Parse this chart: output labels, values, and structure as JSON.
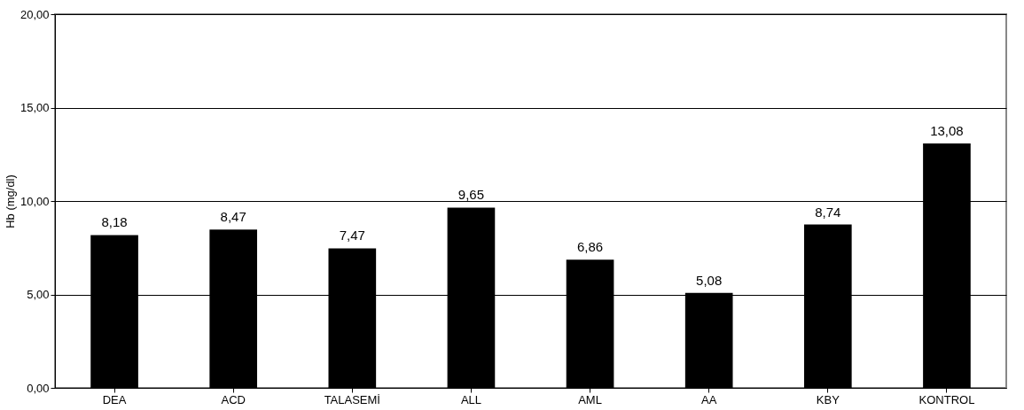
{
  "chart_data": {
    "type": "bar",
    "ylabel": "Hb (mg/dl)",
    "categories": [
      "DEA",
      "ACD",
      "TALASEMİ",
      "ALL",
      "AML",
      "AA",
      "KBY",
      "KONTROL"
    ],
    "values": [
      8.18,
      8.47,
      7.47,
      9.65,
      6.86,
      5.08,
      8.74,
      13.08
    ],
    "value_labels": [
      "8,18",
      "8,47",
      "7,47",
      "9,65",
      "6,86",
      "5,08",
      "8,74",
      "13,08"
    ],
    "color": "#000000",
    "ylim": [
      0,
      20
    ],
    "yticks": [
      {
        "value": 0,
        "label": "0,00"
      },
      {
        "value": 5,
        "label": "5,00"
      },
      {
        "value": 10,
        "label": "10,00"
      },
      {
        "value": 15,
        "label": "15,00"
      },
      {
        "value": 20,
        "label": "20,00"
      }
    ],
    "grid": "y"
  }
}
